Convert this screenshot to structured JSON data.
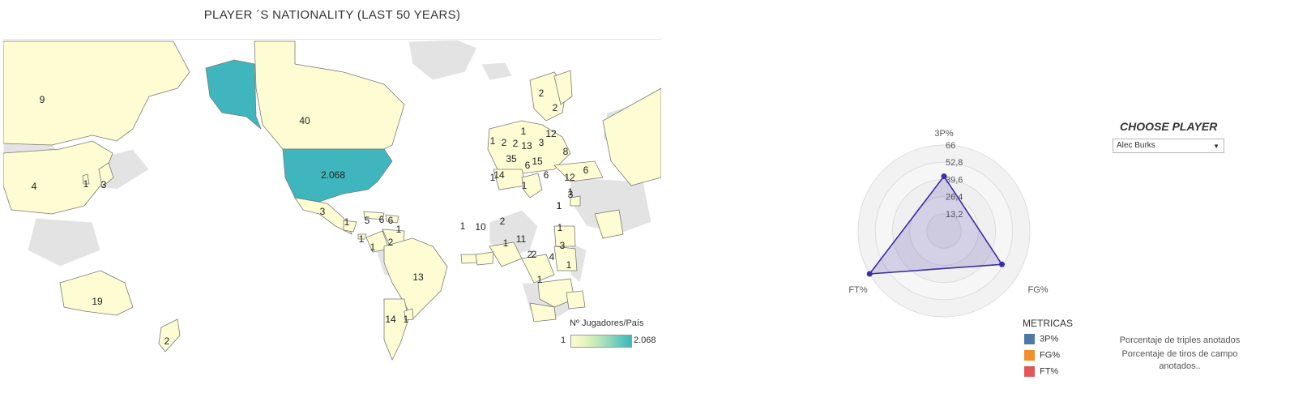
{
  "map": {
    "title": "PLAYER ´S NATIONALITY (LAST 50 YEARS)",
    "legend_title": "Nº Jugadores/País",
    "legend_min": "1",
    "legend_max": "2.068",
    "colors": {
      "low": "#fdfcd2",
      "high": "#3fb6bd",
      "nodata": "#e3e3e3"
    },
    "labels": [
      {
        "country": "Russia",
        "value": "9"
      },
      {
        "country": "Canada",
        "value": "40"
      },
      {
        "country": "United States",
        "value": "2.068"
      },
      {
        "country": "China",
        "value": "4"
      },
      {
        "country": "Korea",
        "value": "1"
      },
      {
        "country": "Japan",
        "value": "3"
      },
      {
        "country": "Mexico",
        "value": "3"
      },
      {
        "country": "Guatemala",
        "value": "1"
      },
      {
        "country": "Cuba",
        "value": "5"
      },
      {
        "country": "Haiti",
        "value": "6"
      },
      {
        "country": "Dominican Rep.",
        "value": "6"
      },
      {
        "country": "Puerto Rico",
        "value": "1"
      },
      {
        "country": "Panama",
        "value": "1"
      },
      {
        "country": "Colombia",
        "value": "1"
      },
      {
        "country": "Venezuela",
        "value": "2"
      },
      {
        "country": "Brazil",
        "value": "13"
      },
      {
        "country": "Argentina",
        "value": "14"
      },
      {
        "country": "Uruguay",
        "value": "1"
      },
      {
        "country": "Australia",
        "value": "19"
      },
      {
        "country": "New Zealand",
        "value": "2"
      },
      {
        "country": "Norway",
        "value": "2"
      },
      {
        "country": "Finland",
        "value": "2"
      },
      {
        "country": "Latvia",
        "value": "12"
      },
      {
        "country": "Lithuania",
        "value": "1"
      },
      {
        "country": "Poland",
        "value": "3"
      },
      {
        "country": "Ukraine",
        "value": "8"
      },
      {
        "country": "United Kingdom",
        "value": "1"
      },
      {
        "country": "Netherlands",
        "value": "2"
      },
      {
        "country": "Belgium",
        "value": "2"
      },
      {
        "country": "Germany",
        "value": "13"
      },
      {
        "country": "France",
        "value": "35"
      },
      {
        "country": "Switzerland",
        "value": "15"
      },
      {
        "country": "Italy",
        "value": "6"
      },
      {
        "country": "Serbia",
        "value": "6"
      },
      {
        "country": "Turkey",
        "value": "12"
      },
      {
        "country": "Georgia",
        "value": "6"
      },
      {
        "country": "Portugal",
        "value": "1"
      },
      {
        "country": "Spain",
        "value": "14"
      },
      {
        "country": "Tunisia",
        "value": "1"
      },
      {
        "country": "Egypt",
        "value": "1"
      },
      {
        "country": "Israel",
        "value": "3"
      },
      {
        "country": "Iran",
        "value": "1"
      },
      {
        "country": "Cape Verde",
        "value": "1"
      },
      {
        "country": "Senegal",
        "value": "10"
      },
      {
        "country": "Mali",
        "value": "2"
      },
      {
        "country": "Nigeria",
        "value": "11"
      },
      {
        "country": "Ghana",
        "value": "1"
      },
      {
        "country": "Sudan",
        "value": "1"
      },
      {
        "country": "South Sudan",
        "value": "1"
      },
      {
        "country": "Cameroon",
        "value": "3"
      },
      {
        "country": "Gabon",
        "value": "2"
      },
      {
        "country": "Congo",
        "value": "2"
      },
      {
        "country": "DR Congo",
        "value": "4"
      },
      {
        "country": "Tanzania",
        "value": "1"
      },
      {
        "country": "Angola",
        "value": "1"
      }
    ]
  },
  "radar": {
    "axes": [
      "3P%",
      "FG%",
      "FT%"
    ],
    "ticks": [
      "66",
      "52,8",
      "39,6",
      "26,4",
      "13,2"
    ],
    "max": 66,
    "values": [
      42.0,
      51.4,
      87.6
    ],
    "fill_color": "#3b2ea8"
  },
  "selector": {
    "title": "CHOOSE PLAYER",
    "selected": "Alec Burks"
  },
  "metricas": {
    "title": "METRICAS",
    "items": [
      {
        "label": "3P%",
        "color": "#4e79a7"
      },
      {
        "label": "FG%",
        "color": "#f28e2b"
      },
      {
        "label": "FT%",
        "color": "#e15759"
      }
    ]
  },
  "descriptions": [
    "Porcentaje de triples anotados",
    "Porcentaje de tiros de campo",
    "anotados.."
  ]
}
